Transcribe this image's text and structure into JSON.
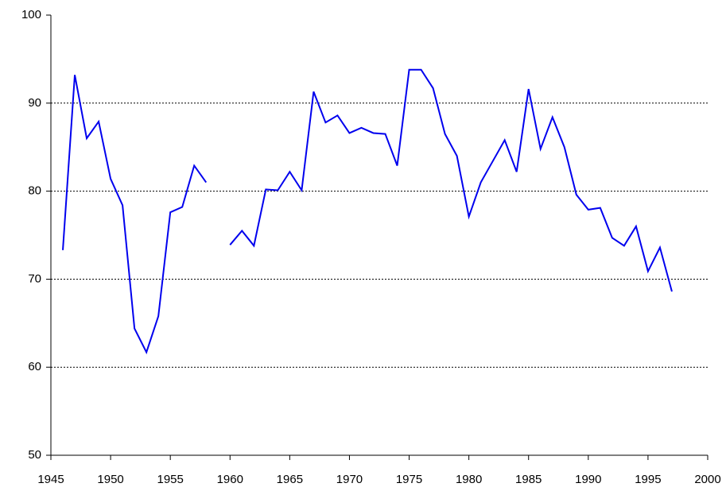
{
  "chart_data": {
    "type": "line",
    "x": [
      1946,
      1947,
      1948,
      1949,
      1950,
      1951,
      1952,
      1953,
      1954,
      1955,
      1956,
      1957,
      1958,
      1959,
      1960,
      1961,
      1962,
      1963,
      1964,
      1965,
      1966,
      1967,
      1968,
      1969,
      1970,
      1971,
      1972,
      1973,
      1974,
      1975,
      1976,
      1977,
      1978,
      1979,
      1980,
      1981,
      1982,
      1983,
      1984,
      1985,
      1986,
      1987,
      1988,
      1989,
      1990,
      1991,
      1992,
      1993,
      1994,
      1995,
      1996,
      1997
    ],
    "values": [
      73.3,
      93.2,
      86.0,
      87.9,
      81.4,
      78.4,
      64.4,
      61.7,
      65.8,
      77.6,
      78.2,
      82.9,
      81.0,
      null,
      73.9,
      75.5,
      73.8,
      80.2,
      80.1,
      82.2,
      80.1,
      91.3,
      87.8,
      88.6,
      86.6,
      87.2,
      86.6,
      86.5,
      82.9,
      93.8,
      93.8,
      91.7,
      86.5,
      84.0,
      77.1,
      81.0,
      83.4,
      85.8,
      82.2,
      91.6,
      84.8,
      88.4,
      85.0,
      79.6,
      77.9,
      78.1,
      74.7,
      73.8,
      76.0,
      70.9,
      73.6,
      68.6
    ],
    "color": "#0000ee",
    "xlim": [
      1945,
      2000
    ],
    "xticks": [
      1945,
      1950,
      1955,
      1960,
      1965,
      1970,
      1975,
      1980,
      1985,
      1990,
      1995,
      2000
    ],
    "ylim": [
      50,
      100
    ],
    "yticks": [
      50,
      60,
      70,
      80,
      90,
      100
    ],
    "grid": true
  }
}
